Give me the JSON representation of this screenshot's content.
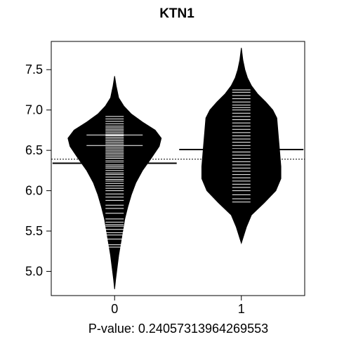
{
  "chart_data": {
    "type": "beanplot",
    "title": "KTN1",
    "xlabel": "P-value: 0.24057313964269553",
    "ylabel": "",
    "categories": [
      "0",
      "1"
    ],
    "ylim": [
      4.7,
      7.85
    ],
    "yticks": [
      5.0,
      5.5,
      6.0,
      6.5,
      7.0,
      7.5
    ],
    "ytick_labels": [
      "5.0",
      "5.5",
      "6.0",
      "6.5",
      "7.0",
      "7.5"
    ],
    "overall_mean": 6.39,
    "series": [
      {
        "category": "0",
        "mean": 6.34,
        "density": [
          [
            4.78,
            0.0
          ],
          [
            4.9,
            0.02
          ],
          [
            5.05,
            0.05
          ],
          [
            5.2,
            0.08
          ],
          [
            5.35,
            0.12
          ],
          [
            5.5,
            0.16
          ],
          [
            5.65,
            0.2
          ],
          [
            5.8,
            0.26
          ],
          [
            5.95,
            0.33
          ],
          [
            6.1,
            0.42
          ],
          [
            6.25,
            0.55
          ],
          [
            6.4,
            0.72
          ],
          [
            6.55,
            0.88
          ],
          [
            6.65,
            0.92
          ],
          [
            6.75,
            0.8
          ],
          [
            6.85,
            0.55
          ],
          [
            6.95,
            0.33
          ],
          [
            7.05,
            0.18
          ],
          [
            7.15,
            0.08
          ],
          [
            7.3,
            0.03
          ],
          [
            7.42,
            0.0
          ]
        ],
        "points": [
          5.3,
          5.33,
          5.4,
          5.45,
          5.48,
          5.52,
          5.56,
          5.58,
          5.61,
          5.65,
          5.72,
          5.78,
          5.82,
          5.88,
          5.92,
          5.96,
          6.0,
          6.03,
          6.06,
          6.09,
          6.12,
          6.14,
          6.17,
          6.2,
          6.22,
          6.25,
          6.28,
          6.3,
          6.32,
          6.35,
          6.37,
          6.4,
          6.42,
          6.44,
          6.46,
          6.48,
          6.5,
          6.52,
          6.54,
          6.56,
          6.58,
          6.6,
          6.62,
          6.64,
          6.66,
          6.68,
          6.7,
          6.72,
          6.74,
          6.76,
          6.78,
          6.8,
          6.83,
          6.86,
          6.89,
          6.92
        ],
        "wide_points": [
          6.56,
          6.69
        ]
      },
      {
        "category": "1",
        "mean": 6.51,
        "density": [
          [
            5.35,
            0.0
          ],
          [
            5.45,
            0.05
          ],
          [
            5.55,
            0.1
          ],
          [
            5.7,
            0.2
          ],
          [
            5.85,
            0.45
          ],
          [
            6.0,
            0.68
          ],
          [
            6.15,
            0.78
          ],
          [
            6.3,
            0.78
          ],
          [
            6.45,
            0.76
          ],
          [
            6.6,
            0.74
          ],
          [
            6.75,
            0.72
          ],
          [
            6.9,
            0.7
          ],
          [
            7.0,
            0.62
          ],
          [
            7.1,
            0.48
          ],
          [
            7.2,
            0.32
          ],
          [
            7.3,
            0.2
          ],
          [
            7.4,
            0.12
          ],
          [
            7.5,
            0.07
          ],
          [
            7.62,
            0.03
          ],
          [
            7.77,
            0.0
          ]
        ],
        "points": [
          5.86,
          5.9,
          5.95,
          6.0,
          6.04,
          6.08,
          6.12,
          6.16,
          6.2,
          6.24,
          6.28,
          6.32,
          6.36,
          6.4,
          6.44,
          6.48,
          6.52,
          6.56,
          6.6,
          6.64,
          6.68,
          6.72,
          6.76,
          6.8,
          6.84,
          6.88,
          6.92,
          6.96,
          7.0,
          7.03,
          7.06,
          7.1,
          7.14,
          7.18,
          7.22,
          7.25
        ],
        "wide_points": []
      }
    ],
    "grid": false,
    "legend": "none"
  },
  "colors": {
    "bean_fill": "#000000",
    "point_line": "#ffffff",
    "axis": "#000000",
    "background": "#ffffff"
  }
}
